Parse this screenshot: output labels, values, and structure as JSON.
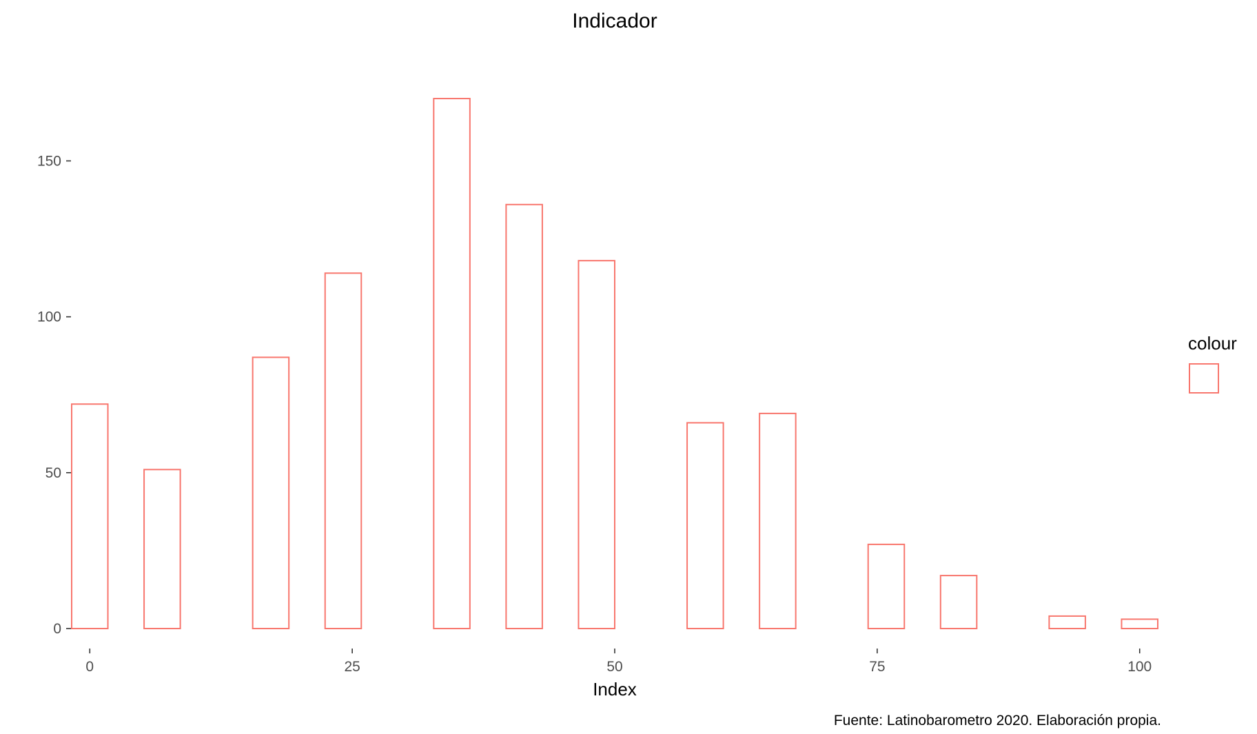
{
  "chart_data": {
    "type": "bar",
    "title": "Indicador",
    "xlabel": "Index",
    "ylabel": "",
    "caption": "Fuente: Latinobarometro 2020. Elaboración propia.",
    "legend": {
      "title": "colour",
      "position": "right"
    },
    "bar_stroke_color": "#F8766D",
    "bin_width": 3.448,
    "bins": [
      {
        "x": 0.0,
        "count": 72
      },
      {
        "x": 3.448,
        "count": 0
      },
      {
        "x": 6.897,
        "count": 51
      },
      {
        "x": 10.345,
        "count": 0
      },
      {
        "x": 13.793,
        "count": 0
      },
      {
        "x": 17.241,
        "count": 87
      },
      {
        "x": 20.69,
        "count": 0
      },
      {
        "x": 24.138,
        "count": 114
      },
      {
        "x": 27.586,
        "count": 0
      },
      {
        "x": 31.034,
        "count": 0
      },
      {
        "x": 34.483,
        "count": 170
      },
      {
        "x": 37.931,
        "count": 0
      },
      {
        "x": 41.379,
        "count": 136
      },
      {
        "x": 44.828,
        "count": 0
      },
      {
        "x": 48.276,
        "count": 118
      },
      {
        "x": 51.724,
        "count": 0
      },
      {
        "x": 55.172,
        "count": 0
      },
      {
        "x": 58.621,
        "count": 66
      },
      {
        "x": 62.069,
        "count": 0
      },
      {
        "x": 65.517,
        "count": 69
      },
      {
        "x": 68.966,
        "count": 0
      },
      {
        "x": 72.414,
        "count": 0
      },
      {
        "x": 75.862,
        "count": 27
      },
      {
        "x": 79.31,
        "count": 0
      },
      {
        "x": 82.759,
        "count": 17
      },
      {
        "x": 86.207,
        "count": 0
      },
      {
        "x": 89.655,
        "count": 0
      },
      {
        "x": 93.103,
        "count": 4
      },
      {
        "x": 96.552,
        "count": 0
      },
      {
        "x": 100.0,
        "count": 3
      }
    ],
    "x_ticks": [
      0,
      25,
      50,
      75,
      100
    ],
    "y_ticks": [
      0,
      50,
      100,
      150
    ],
    "xlim": [
      -1.724,
      101.724
    ],
    "ylim": [
      0,
      170
    ],
    "grid": false
  }
}
